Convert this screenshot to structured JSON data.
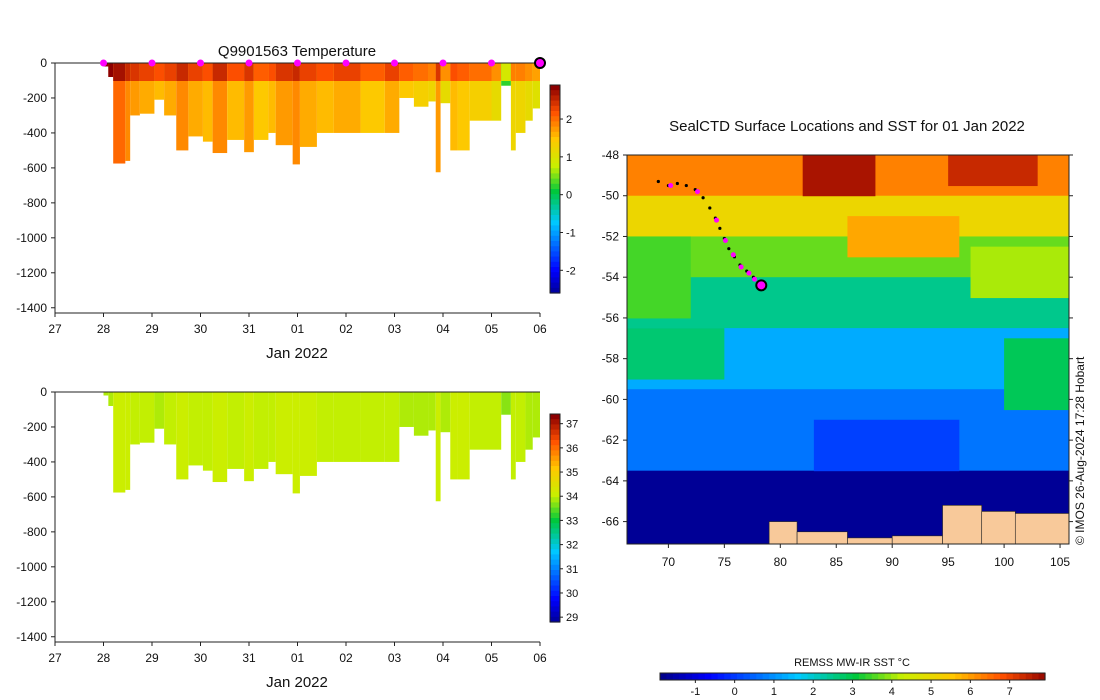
{
  "chart_data": [
    {
      "id": "temperature-section",
      "type": "heatmap",
      "title": "Q9901563  Temperature",
      "x_tick_labels": [
        "27",
        "28",
        "29",
        "30",
        "31",
        "01",
        "02",
        "03",
        "04",
        "05",
        "06"
      ],
      "x_label": "Jan 2022",
      "x_range_days": [
        0,
        10
      ],
      "y_ticks": [
        0,
        -200,
        -400,
        -600,
        -800,
        -1000,
        -1200,
        -1400
      ],
      "ylim": [
        -1430,
        0
      ],
      "colorbar_ticks": [
        2,
        1,
        0,
        -1,
        -2
      ],
      "colorbar_range": [
        -2.6,
        2.9
      ],
      "profile_markers_day": [
        1,
        2,
        3,
        4,
        5,
        6,
        7,
        8,
        9
      ],
      "current_marker_day": 10,
      "profiles": [
        {
          "start": 1.0,
          "end": 1.1,
          "depth": 20,
          "value": 2.8
        },
        {
          "start": 1.1,
          "end": 1.2,
          "depth": 80,
          "value": 2.6
        },
        {
          "start": 1.2,
          "end": 1.45,
          "depth": 575,
          "value": 2.1
        },
        {
          "start": 1.45,
          "end": 1.55,
          "depth": 560,
          "value": 1.9
        },
        {
          "start": 1.55,
          "end": 1.75,
          "depth": 300,
          "value": 1.8
        },
        {
          "start": 1.75,
          "end": 2.05,
          "depth": 290,
          "value": 1.7
        },
        {
          "start": 2.05,
          "end": 2.25,
          "depth": 210,
          "value": 1.6
        },
        {
          "start": 2.25,
          "end": 2.5,
          "depth": 300,
          "value": 1.7
        },
        {
          "start": 2.5,
          "end": 2.75,
          "depth": 500,
          "value": 1.9
        },
        {
          "start": 2.75,
          "end": 3.05,
          "depth": 420,
          "value": 1.7
        },
        {
          "start": 3.05,
          "end": 3.25,
          "depth": 450,
          "value": 1.6
        },
        {
          "start": 3.25,
          "end": 3.55,
          "depth": 515,
          "value": 1.9
        },
        {
          "start": 3.55,
          "end": 3.9,
          "depth": 440,
          "value": 1.6
        },
        {
          "start": 3.9,
          "end": 4.1,
          "depth": 510,
          "value": 1.8
        },
        {
          "start": 4.1,
          "end": 4.4,
          "depth": 440,
          "value": 1.5
        },
        {
          "start": 4.4,
          "end": 4.55,
          "depth": 400,
          "value": 1.6
        },
        {
          "start": 4.55,
          "end": 4.9,
          "depth": 470,
          "value": 1.8
        },
        {
          "start": 4.9,
          "end": 5.05,
          "depth": 580,
          "value": 1.9
        },
        {
          "start": 5.05,
          "end": 5.4,
          "depth": 480,
          "value": 1.7
        },
        {
          "start": 5.4,
          "end": 5.75,
          "depth": 400,
          "value": 1.6
        },
        {
          "start": 5.75,
          "end": 6.3,
          "depth": 400,
          "value": 1.7
        },
        {
          "start": 6.3,
          "end": 6.8,
          "depth": 400,
          "value": 1.5
        },
        {
          "start": 6.8,
          "end": 7.1,
          "depth": 400,
          "value": 1.7
        },
        {
          "start": 7.1,
          "end": 7.4,
          "depth": 200,
          "value": 1.5
        },
        {
          "start": 7.4,
          "end": 7.7,
          "depth": 250,
          "value": 1.4
        },
        {
          "start": 7.7,
          "end": 7.85,
          "depth": 220,
          "value": 1.3
        },
        {
          "start": 7.85,
          "end": 7.95,
          "depth": 625,
          "value": 1.8
        },
        {
          "start": 7.95,
          "end": 8.15,
          "depth": 230,
          "value": 1.2
        },
        {
          "start": 8.15,
          "end": 8.3,
          "depth": 500,
          "value": 1.6
        },
        {
          "start": 8.3,
          "end": 8.55,
          "depth": 500,
          "value": 1.5
        },
        {
          "start": 8.55,
          "end": 9.0,
          "depth": 330,
          "value": 1.4
        },
        {
          "start": 9.0,
          "end": 9.2,
          "depth": 330,
          "value": 1.2
        },
        {
          "start": 9.2,
          "end": 9.4,
          "depth": 130,
          "value": 0.3
        },
        {
          "start": 9.4,
          "end": 9.5,
          "depth": 500,
          "value": 1.3
        },
        {
          "start": 9.5,
          "end": 9.7,
          "depth": 400,
          "value": 1.3
        },
        {
          "start": 9.7,
          "end": 9.85,
          "depth": 330,
          "value": 1.2
        },
        {
          "start": 9.85,
          "end": 10.0,
          "depth": 260,
          "value": 1.1
        }
      ]
    },
    {
      "id": "salinity-section",
      "type": "heatmap",
      "title": "",
      "x_tick_labels": [
        "27",
        "28",
        "29",
        "30",
        "31",
        "01",
        "02",
        "03",
        "04",
        "05",
        "06"
      ],
      "x_label": "Jan 2022",
      "x_range_days": [
        0,
        10
      ],
      "y_ticks": [
        0,
        -200,
        -400,
        -600,
        -800,
        -1000,
        -1200,
        -1400
      ],
      "ylim": [
        -1430,
        0
      ],
      "colorbar_ticks": [
        37,
        36,
        35,
        34,
        33,
        32,
        31,
        30,
        29
      ],
      "colorbar_range": [
        28.8,
        37.4
      ],
      "profiles": [
        {
          "start": 1.0,
          "end": 1.1,
          "depth": 20,
          "value": 34.0
        },
        {
          "start": 1.1,
          "end": 1.2,
          "depth": 80,
          "value": 34.0
        },
        {
          "start": 1.2,
          "end": 1.45,
          "depth": 575,
          "value": 34.2
        },
        {
          "start": 1.45,
          "end": 1.55,
          "depth": 560,
          "value": 34.2
        },
        {
          "start": 1.55,
          "end": 1.75,
          "depth": 300,
          "value": 34.1
        },
        {
          "start": 1.75,
          "end": 2.05,
          "depth": 290,
          "value": 34.1
        },
        {
          "start": 2.05,
          "end": 2.25,
          "depth": 210,
          "value": 34.0
        },
        {
          "start": 2.25,
          "end": 2.5,
          "depth": 300,
          "value": 34.1
        },
        {
          "start": 2.5,
          "end": 2.75,
          "depth": 500,
          "value": 34.2
        },
        {
          "start": 2.75,
          "end": 3.05,
          "depth": 420,
          "value": 34.1
        },
        {
          "start": 3.05,
          "end": 3.25,
          "depth": 450,
          "value": 34.1
        },
        {
          "start": 3.25,
          "end": 3.55,
          "depth": 515,
          "value": 34.2
        },
        {
          "start": 3.55,
          "end": 3.9,
          "depth": 440,
          "value": 34.1
        },
        {
          "start": 3.9,
          "end": 4.1,
          "depth": 510,
          "value": 34.2
        },
        {
          "start": 4.1,
          "end": 4.4,
          "depth": 440,
          "value": 34.1
        },
        {
          "start": 4.4,
          "end": 4.55,
          "depth": 400,
          "value": 34.1
        },
        {
          "start": 4.55,
          "end": 4.9,
          "depth": 470,
          "value": 34.2
        },
        {
          "start": 4.9,
          "end": 5.05,
          "depth": 580,
          "value": 34.2
        },
        {
          "start": 5.05,
          "end": 5.4,
          "depth": 480,
          "value": 34.2
        },
        {
          "start": 5.4,
          "end": 5.75,
          "depth": 400,
          "value": 34.1
        },
        {
          "start": 5.75,
          "end": 6.3,
          "depth": 400,
          "value": 34.1
        },
        {
          "start": 6.3,
          "end": 6.8,
          "depth": 400,
          "value": 34.1
        },
        {
          "start": 6.8,
          "end": 7.1,
          "depth": 400,
          "value": 34.1
        },
        {
          "start": 7.1,
          "end": 7.4,
          "depth": 200,
          "value": 34.0
        },
        {
          "start": 7.4,
          "end": 7.7,
          "depth": 250,
          "value": 34.0
        },
        {
          "start": 7.7,
          "end": 7.85,
          "depth": 220,
          "value": 34.0
        },
        {
          "start": 7.85,
          "end": 7.95,
          "depth": 625,
          "value": 34.2
        },
        {
          "start": 7.95,
          "end": 8.15,
          "depth": 230,
          "value": 34.0
        },
        {
          "start": 8.15,
          "end": 8.3,
          "depth": 500,
          "value": 34.2
        },
        {
          "start": 8.3,
          "end": 8.55,
          "depth": 500,
          "value": 34.2
        },
        {
          "start": 8.55,
          "end": 9.0,
          "depth": 330,
          "value": 34.1
        },
        {
          "start": 9.0,
          "end": 9.2,
          "depth": 330,
          "value": 34.1
        },
        {
          "start": 9.2,
          "end": 9.4,
          "depth": 130,
          "value": 33.8
        },
        {
          "start": 9.4,
          "end": 9.5,
          "depth": 500,
          "value": 34.1
        },
        {
          "start": 9.5,
          "end": 9.7,
          "depth": 400,
          "value": 34.1
        },
        {
          "start": 9.7,
          "end": 9.85,
          "depth": 330,
          "value": 34.0
        },
        {
          "start": 9.85,
          "end": 10.0,
          "depth": 260,
          "value": 34.0
        }
      ]
    },
    {
      "id": "sst-map",
      "type": "heatmap",
      "title": "SealCTD Surface Locations and SST for 01 Jan 2022",
      "x_ticks": [
        70,
        75,
        80,
        85,
        90,
        95,
        100,
        105
      ],
      "y_ticks": [
        -48,
        -50,
        -52,
        -54,
        -56,
        -58,
        -60,
        -62,
        -64,
        -66
      ],
      "xlim": [
        66.3,
        105.8
      ],
      "ylim": [
        -67.1,
        -48.0
      ],
      "colorbar_label": "REMSS MW-IR SST °C",
      "colorbar_ticks": [
        -1,
        0,
        1,
        2,
        3,
        4,
        5,
        6,
        7
      ],
      "colorbar_range": [
        -1.9,
        7.9
      ],
      "credit": "© IMOS 26-Aug-2024 17:28 Hobart",
      "sst_regions": [
        {
          "lon": [
            66.3,
            105.8
          ],
          "lat": [
            -48.0,
            -50.0
          ],
          "value": 6.2
        },
        {
          "lon": [
            66.3,
            105.8
          ],
          "lat": [
            -50.0,
            -52.0
          ],
          "value": 5.0
        },
        {
          "lon": [
            66.3,
            105.8
          ],
          "lat": [
            -52.0,
            -54.0
          ],
          "value": 3.6
        },
        {
          "lon": [
            66.3,
            105.8
          ],
          "lat": [
            -54.0,
            -56.5
          ],
          "value": 2.4
        },
        {
          "lon": [
            66.3,
            105.8
          ],
          "lat": [
            -56.5,
            -59.5
          ],
          "value": 1.2
        },
        {
          "lon": [
            66.3,
            105.8
          ],
          "lat": [
            -59.5,
            -63.5
          ],
          "value": 0.6
        },
        {
          "lon": [
            66.3,
            105.8
          ],
          "lat": [
            -63.5,
            -67.1
          ],
          "value": -1.8
        },
        {
          "lon": [
            82.0,
            88.5
          ],
          "lat": [
            -48.0,
            -50.0
          ],
          "value": 7.6
        },
        {
          "lon": [
            95.0,
            103.0
          ],
          "lat": [
            -48.0,
            -49.5
          ],
          "value": 7.3
        },
        {
          "lon": [
            86.0,
            96.0
          ],
          "lat": [
            -51.0,
            -53.0
          ],
          "value": 5.8
        },
        {
          "lon": [
            97.0,
            105.8
          ],
          "lat": [
            -52.5,
            -55.0
          ],
          "value": 4.0
        },
        {
          "lon": [
            66.3,
            72.0
          ],
          "lat": [
            -52.0,
            -56.0
          ],
          "value": 3.4
        },
        {
          "lon": [
            66.3,
            75.0
          ],
          "lat": [
            -56.5,
            -59.0
          ],
          "value": 2.6
        },
        {
          "lon": [
            100.0,
            105.8
          ],
          "lat": [
            -57.0,
            -60.5
          ],
          "value": 2.8
        },
        {
          "lon": [
            83.0,
            96.0
          ],
          "lat": [
            -61.0,
            -63.5
          ],
          "value": 0.0
        }
      ],
      "land_areas": [
        {
          "lon": [
            79.0,
            81.5
          ],
          "lat": [
            -66.0,
            -67.1
          ]
        },
        {
          "lon": [
            81.5,
            86.0
          ],
          "lat": [
            -66.5,
            -67.1
          ]
        },
        {
          "lon": [
            86.0,
            90.0
          ],
          "lat": [
            -66.8,
            -67.1
          ]
        },
        {
          "lon": [
            90.0,
            94.5
          ],
          "lat": [
            -66.7,
            -67.1
          ]
        },
        {
          "lon": [
            94.5,
            98.0
          ],
          "lat": [
            -65.2,
            -67.1
          ]
        },
        {
          "lon": [
            98.0,
            101.0
          ],
          "lat": [
            -65.5,
            -67.1
          ]
        },
        {
          "lon": [
            101.0,
            105.8
          ],
          "lat": [
            -65.6,
            -67.1
          ]
        }
      ],
      "track": [
        {
          "lon": 69.1,
          "lat": -49.3
        },
        {
          "lon": 70.0,
          "lat": -49.5
        },
        {
          "lon": 70.8,
          "lat": -49.4
        },
        {
          "lon": 71.6,
          "lat": -49.5
        },
        {
          "lon": 72.4,
          "lat": -49.7
        },
        {
          "lon": 73.1,
          "lat": -50.1
        },
        {
          "lon": 73.7,
          "lat": -50.6
        },
        {
          "lon": 74.2,
          "lat": -51.1
        },
        {
          "lon": 74.6,
          "lat": -51.6
        },
        {
          "lon": 75.0,
          "lat": -52.1
        },
        {
          "lon": 75.4,
          "lat": -52.6
        },
        {
          "lon": 75.9,
          "lat": -53.0
        },
        {
          "lon": 76.4,
          "lat": -53.4
        },
        {
          "lon": 77.0,
          "lat": -53.7
        },
        {
          "lon": 77.6,
          "lat": -54.0
        },
        {
          "lon": 78.3,
          "lat": -54.4
        }
      ],
      "track_profile_points": [
        {
          "lon": 70.2,
          "lat": -49.5
        },
        {
          "lon": 72.6,
          "lat": -49.8
        },
        {
          "lon": 74.3,
          "lat": -51.2
        },
        {
          "lon": 75.1,
          "lat": -52.2
        },
        {
          "lon": 75.8,
          "lat": -52.9
        },
        {
          "lon": 76.5,
          "lat": -53.5
        },
        {
          "lon": 77.2,
          "lat": -53.8
        },
        {
          "lon": 77.7,
          "lat": -54.1
        }
      ],
      "current_position": {
        "lon": 78.3,
        "lat": -54.4
      }
    }
  ]
}
